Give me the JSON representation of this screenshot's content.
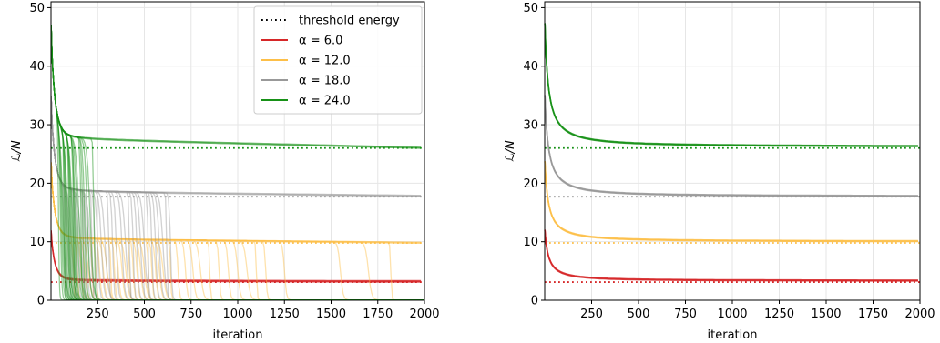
{
  "chart_data": [
    {
      "type": "line",
      "panel": "left",
      "xlabel": "iteration",
      "ylabel": "ℒ/N",
      "xlim": [
        0,
        2000
      ],
      "ylim": [
        0,
        51
      ],
      "xticks": [
        250,
        500,
        750,
        1000,
        1250,
        1500,
        1750,
        2000
      ],
      "yticks": [
        0,
        10,
        20,
        30,
        40,
        50
      ],
      "grid": true,
      "legend_position": "top-right",
      "legend": [
        {
          "label": "threshold energy",
          "style": "dotted",
          "color": "#000000"
        },
        {
          "label": "α = 6.0",
          "style": "solid",
          "color": "#d62728"
        },
        {
          "label": "α = 12.0",
          "style": "solid",
          "color": "#fdbf48"
        },
        {
          "label": "α = 18.0",
          "style": "solid",
          "color": "#999999"
        },
        {
          "label": "α = 24.0",
          "style": "solid",
          "color": "#179117"
        }
      ],
      "thresholds": [
        {
          "alpha": 6.0,
          "value": 3.1,
          "color": "#d62728"
        },
        {
          "alpha": 12.0,
          "value": 9.8,
          "color": "#fdbf48"
        },
        {
          "alpha": 18.0,
          "value": 17.7,
          "color": "#999999"
        },
        {
          "alpha": 24.0,
          "value": 26.0,
          "color": "#179117"
        }
      ],
      "series": [
        {
          "alpha": 6.0,
          "color": "#d62728",
          "y0": 12.5,
          "plateau": 3.3,
          "plateau_end": 3.2,
          "collapse_iterations": []
        },
        {
          "alpha": 12.0,
          "color": "#fdbf48",
          "y0": 24.5,
          "plateau": 10.4,
          "plateau_end": 9.8,
          "collapse_iterations": [
            120,
            140,
            160,
            180,
            200,
            220,
            240,
            260,
            280,
            300,
            320,
            340,
            360,
            380,
            400,
            420,
            440,
            460,
            480,
            500,
            520,
            540,
            560,
            580,
            600,
            640,
            680,
            720,
            760,
            800,
            850,
            900,
            950,
            1000,
            1050,
            1100,
            1150,
            1250,
            1550,
            1700,
            1820
          ]
        },
        {
          "alpha": 18.0,
          "color": "#999999",
          "y0": 36.0,
          "plateau": 18.5,
          "plateau_end": 17.8,
          "collapse_iterations": [
            70,
            80,
            90,
            100,
            110,
            120,
            130,
            140,
            150,
            160,
            170,
            180,
            190,
            200,
            210,
            220,
            235,
            250,
            270,
            290,
            310,
            330,
            350,
            380,
            400,
            420,
            440,
            460,
            480,
            500,
            520,
            540,
            560,
            580,
            600,
            620,
            640
          ]
        },
        {
          "alpha": 24.0,
          "color": "#179117",
          "y0": 48.5,
          "plateau": 27.5,
          "plateau_end": 26.0,
          "collapse_iterations": [
            40,
            50,
            55,
            60,
            65,
            70,
            75,
            80,
            85,
            90,
            95,
            100,
            105,
            110,
            115,
            120,
            125,
            130,
            140,
            150,
            160,
            170,
            180,
            195,
            210,
            230
          ]
        }
      ]
    },
    {
      "type": "line",
      "panel": "right",
      "xlabel": "iteration",
      "ylabel": "ℒ/N",
      "xlim": [
        0,
        2000
      ],
      "ylim": [
        0,
        51
      ],
      "xticks": [
        250,
        500,
        750,
        1000,
        1250,
        1500,
        1750,
        2000
      ],
      "yticks": [
        0,
        10,
        20,
        30,
        40,
        50
      ],
      "grid": true,
      "thresholds": [
        {
          "alpha": 6.0,
          "value": 3.1,
          "color": "#d62728"
        },
        {
          "alpha": 12.0,
          "value": 9.8,
          "color": "#fdbf48"
        },
        {
          "alpha": 18.0,
          "value": 17.7,
          "color": "#999999"
        },
        {
          "alpha": 24.0,
          "value": 26.0,
          "color": "#179117"
        }
      ],
      "series": [
        {
          "alpha": 6.0,
          "color": "#d62728",
          "y0": 12.5,
          "final": 3.3
        },
        {
          "alpha": 12.0,
          "color": "#fdbf48",
          "y0": 24.5,
          "final": 10.0
        },
        {
          "alpha": 18.0,
          "color": "#999999",
          "y0": 36.0,
          "final": 17.7
        },
        {
          "alpha": 24.0,
          "color": "#179117",
          "y0": 48.5,
          "final": 26.2
        }
      ]
    }
  ]
}
